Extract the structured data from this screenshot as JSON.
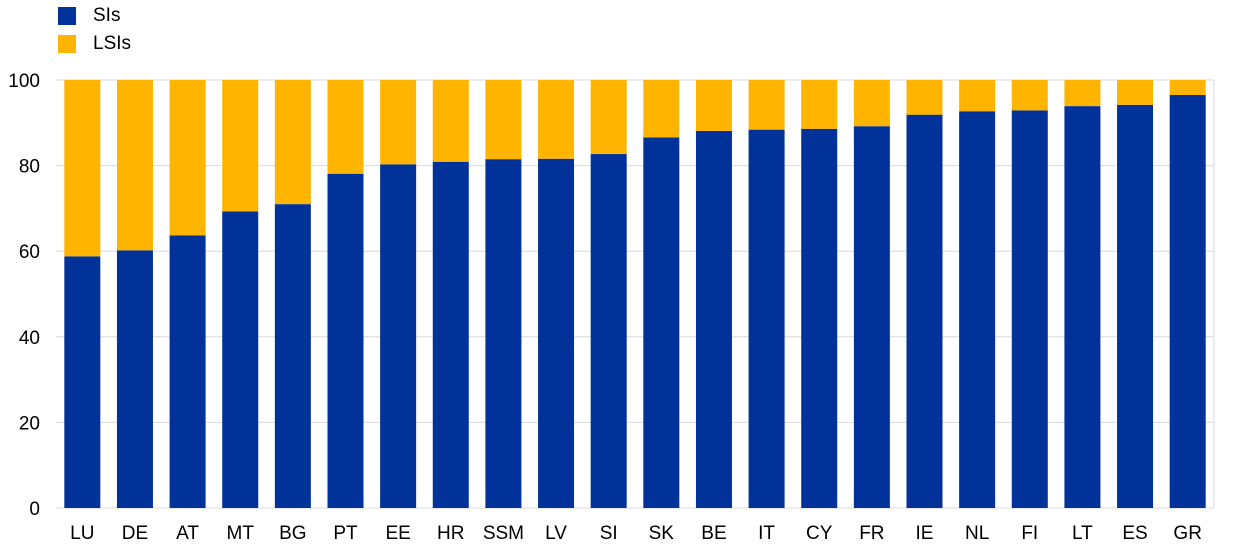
{
  "chart_data": {
    "type": "bar",
    "stacked": true,
    "categories": [
      "LU",
      "DE",
      "AT",
      "MT",
      "BG",
      "PT",
      "EE",
      "HR",
      "SSM",
      "LV",
      "SI",
      "SK",
      "BE",
      "IT",
      "CY",
      "FR",
      "IE",
      "NL",
      "FI",
      "LT",
      "ES",
      "GR"
    ],
    "series": [
      {
        "name": "SIs",
        "color": "#003299",
        "values": [
          58.8,
          60.2,
          63.7,
          69.3,
          71.0,
          78.1,
          80.3,
          80.9,
          81.5,
          81.6,
          82.7,
          86.6,
          88.1,
          88.4,
          88.6,
          89.2,
          91.9,
          92.7,
          92.9,
          93.9,
          94.2,
          96.5
        ]
      },
      {
        "name": "LSIs",
        "color": "#FFB400",
        "values": [
          41.2,
          39.8,
          36.3,
          30.7,
          29.0,
          21.9,
          19.7,
          19.1,
          18.5,
          18.4,
          17.3,
          13.4,
          11.9,
          11.6,
          11.4,
          10.8,
          8.1,
          7.3,
          7.1,
          6.1,
          5.8,
          3.5
        ]
      }
    ],
    "ylim": [
      0,
      100
    ],
    "yticks": [
      0,
      20,
      40,
      60,
      80,
      100
    ],
    "grid": true,
    "legend_position": "top-left"
  }
}
